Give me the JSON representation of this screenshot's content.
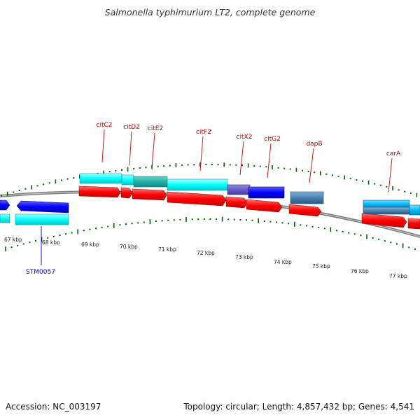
{
  "title": "Salmonella typhimurium LT2, complete genome",
  "footer": {
    "accession": "Accession: NC_003197",
    "topology": "Topology: circular; Length: 4,857,432 bp; Genes: 4,541"
  },
  "colors": {
    "forward_gene": "#ff0000",
    "cyan": "#00ffff",
    "blue": "#0000ff",
    "steel": "#4682b4",
    "sky": "#00bfff",
    "teal": "#20b2aa",
    "label_red": "#cc0000",
    "label_blue": "#0000cc",
    "tick_green": "#006400",
    "backbone": "#808080"
  },
  "kbp_labels": [
    "67 kbp",
    "68 kbp",
    "69 kbp",
    "70 kbp",
    "71 kbp",
    "72 kbp",
    "73 kbp",
    "74 kbp",
    "75 kbp",
    "76 kbp",
    "77 kbp"
  ],
  "gene_labels": [
    {
      "text": "citC2",
      "color": "label_red"
    },
    {
      "text": "citD2",
      "color": "label_red"
    },
    {
      "text": "citE2",
      "color": "label_red"
    },
    {
      "text": "citF2",
      "color": "label_red"
    },
    {
      "text": "citX2",
      "color": "label_red"
    },
    {
      "text": "citG2",
      "color": "label_red"
    },
    {
      "text": "dapB",
      "color": "label_red"
    },
    {
      "text": "carA",
      "color": "label_red"
    },
    {
      "text": "STM0057",
      "color": "label_blue"
    }
  ]
}
